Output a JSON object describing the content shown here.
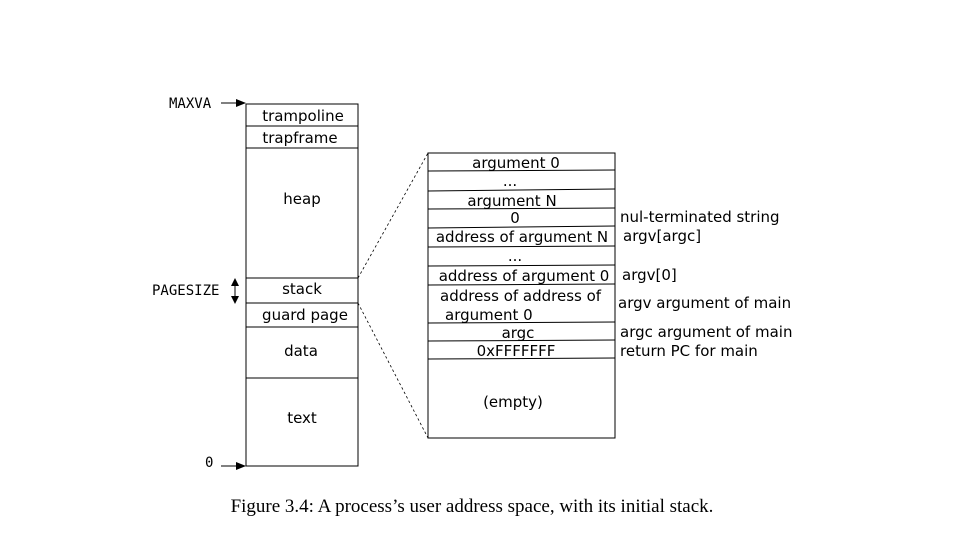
{
  "address_space": {
    "top_label": "MAXVA",
    "pagesize_label": "PAGESIZE",
    "bottom_label": "0",
    "regions": {
      "trampoline": "trampoline",
      "trapframe": "trapframe",
      "heap": "heap",
      "stack": "stack",
      "guard": "guard page",
      "data": "data",
      "text": "text"
    }
  },
  "stack_detail": {
    "rows": {
      "r0": "argument 0",
      "r1": "...",
      "r2": "argument N",
      "r3": "0",
      "r4": "address of argument N",
      "r5": "...",
      "r6": "address of argument 0",
      "r7a": "address of address of",
      "r7b": "argument 0",
      "r8": "argc",
      "r9": "0xFFFFFFF",
      "empty": "(empty)"
    },
    "notes": {
      "r3": "nul-terminated string",
      "r4": "argv[argc]",
      "r6": "argv[0]",
      "r7": "argv argument of main",
      "r8": "argc argument of main",
      "r9": "return PC for main"
    }
  },
  "caption": "Figure 3.4: A process’s user address space, with its initial stack."
}
